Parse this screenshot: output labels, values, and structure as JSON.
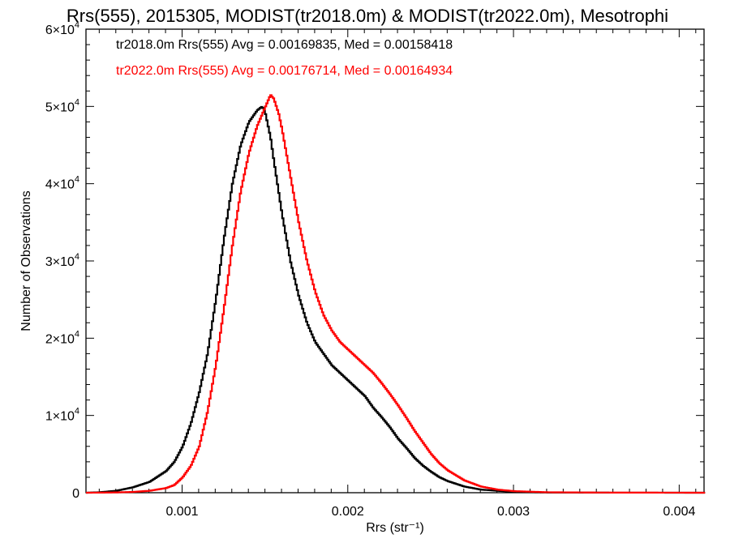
{
  "chart_data": {
    "type": "line",
    "title": "Rrs(555), 2015305, MODIST(tr2018.0m) & MODIST(tr2022.0m), Mesotrophi",
    "xlabel": "Rrs (str⁻¹)",
    "ylabel": "Number of Observations",
    "xlim": [
      0.00042,
      0.00415
    ],
    "ylim": [
      0,
      60000
    ],
    "x_ticks": [
      0.001,
      0.002,
      0.003,
      0.004
    ],
    "x_tick_labels": [
      "0.001",
      "0.002",
      "0.003",
      "0.004"
    ],
    "y_ticks": [
      0,
      10000,
      20000,
      30000,
      40000,
      50000,
      60000
    ],
    "y_tick_labels": [
      {
        "mantissa": "0",
        "exp": ""
      },
      {
        "mantissa": "1×10",
        "exp": "4"
      },
      {
        "mantissa": "2×10",
        "exp": "4"
      },
      {
        "mantissa": "3×10",
        "exp": "4"
      },
      {
        "mantissa": "4×10",
        "exp": "4"
      },
      {
        "mantissa": "5×10",
        "exp": "4"
      },
      {
        "mantissa": "6×10",
        "exp": "4"
      }
    ],
    "grid": false,
    "legend_position": "top-left",
    "series": [
      {
        "name": "tr2018.0m",
        "color": "#000000",
        "legend_text": "tr2018.0m Rrs(555) Avg = 0.00169835, Med = 0.00158418",
        "points": [
          [
            0.00042,
            0
          ],
          [
            0.0005,
            60
          ],
          [
            0.0006,
            250
          ],
          [
            0.0007,
            700
          ],
          [
            0.0008,
            1400
          ],
          [
            0.0009,
            2800
          ],
          [
            0.00095,
            4000
          ],
          [
            0.001,
            6000
          ],
          [
            0.00105,
            9000
          ],
          [
            0.0011,
            13000
          ],
          [
            0.00115,
            18000
          ],
          [
            0.0012,
            25000
          ],
          [
            0.00125,
            33000
          ],
          [
            0.0013,
            40000
          ],
          [
            0.00135,
            45000
          ],
          [
            0.0014,
            48000
          ],
          [
            0.00145,
            49500
          ],
          [
            0.00148,
            50000
          ],
          [
            0.0015,
            49000
          ],
          [
            0.00153,
            46000
          ],
          [
            0.00155,
            43000
          ],
          [
            0.0016,
            36000
          ],
          [
            0.00165,
            30000
          ],
          [
            0.0017,
            25500
          ],
          [
            0.00175,
            22000
          ],
          [
            0.0018,
            19500
          ],
          [
            0.00185,
            18000
          ],
          [
            0.0019,
            16500
          ],
          [
            0.00195,
            15500
          ],
          [
            0.002,
            14500
          ],
          [
            0.00205,
            13500
          ],
          [
            0.0021,
            12500
          ],
          [
            0.00215,
            11000
          ],
          [
            0.0022,
            9800
          ],
          [
            0.00225,
            8500
          ],
          [
            0.0023,
            7000
          ],
          [
            0.00235,
            5800
          ],
          [
            0.0024,
            4500
          ],
          [
            0.00245,
            3500
          ],
          [
            0.0025,
            2700
          ],
          [
            0.00255,
            2000
          ],
          [
            0.0026,
            1500
          ],
          [
            0.0027,
            800
          ],
          [
            0.0028,
            400
          ],
          [
            0.003,
            100
          ],
          [
            0.0032,
            30
          ],
          [
            0.0035,
            10
          ],
          [
            0.00415,
            0
          ]
        ]
      },
      {
        "name": "tr2022.0m",
        "color": "#ff0000",
        "legend_text": "tr2022.0m Rrs(555) Avg = 0.00176714, Med = 0.00164934",
        "points": [
          [
            0.00042,
            0
          ],
          [
            0.0005,
            10
          ],
          [
            0.0006,
            40
          ],
          [
            0.0007,
            100
          ],
          [
            0.0008,
            250
          ],
          [
            0.0009,
            600
          ],
          [
            0.00095,
            1000
          ],
          [
            0.001,
            2000
          ],
          [
            0.00105,
            3500
          ],
          [
            0.0011,
            6000
          ],
          [
            0.00115,
            10500
          ],
          [
            0.0012,
            16500
          ],
          [
            0.00125,
            24000
          ],
          [
            0.0013,
            32000
          ],
          [
            0.00135,
            39000
          ],
          [
            0.0014,
            44000
          ],
          [
            0.00145,
            47500
          ],
          [
            0.0015,
            50000
          ],
          [
            0.00153,
            51500
          ],
          [
            0.00155,
            51000
          ],
          [
            0.00158,
            49000
          ],
          [
            0.0016,
            47000
          ],
          [
            0.00165,
            41000
          ],
          [
            0.0017,
            35000
          ],
          [
            0.00175,
            30000
          ],
          [
            0.0018,
            26000
          ],
          [
            0.00185,
            23000
          ],
          [
            0.0019,
            21000
          ],
          [
            0.00195,
            19500
          ],
          [
            0.002,
            18500
          ],
          [
            0.00205,
            17500
          ],
          [
            0.0021,
            16500
          ],
          [
            0.00215,
            15500
          ],
          [
            0.0022,
            14200
          ],
          [
            0.00225,
            12800
          ],
          [
            0.0023,
            11300
          ],
          [
            0.00235,
            9700
          ],
          [
            0.0024,
            8000
          ],
          [
            0.00245,
            6500
          ],
          [
            0.0025,
            5000
          ],
          [
            0.00255,
            3800
          ],
          [
            0.0026,
            2900
          ],
          [
            0.0027,
            1600
          ],
          [
            0.0028,
            800
          ],
          [
            0.0029,
            400
          ],
          [
            0.003,
            200
          ],
          [
            0.0032,
            60
          ],
          [
            0.0035,
            20
          ],
          [
            0.00415,
            0
          ]
        ]
      }
    ]
  }
}
